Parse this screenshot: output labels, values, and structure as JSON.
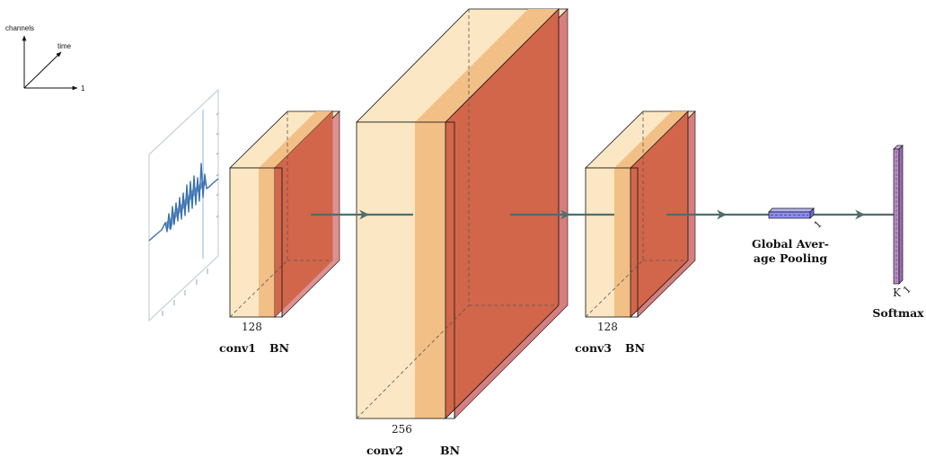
{
  "axes_legend": {
    "y_label": "channels",
    "z_label": "time",
    "x_label": "1"
  },
  "blocks": [
    {
      "id": "conv1",
      "size_label": "128",
      "conv_label": "conv1",
      "bn_label": "BN"
    },
    {
      "id": "conv2",
      "size_label": "256",
      "conv_label": "conv2",
      "bn_label": "BN"
    },
    {
      "id": "conv3",
      "size_label": "128",
      "conv_label": "conv3",
      "bn_label": "BN"
    }
  ],
  "gap": {
    "title_line1": "Global Aver-",
    "title_line2": "age Pooling",
    "dim_label": "1"
  },
  "softmax": {
    "title": "Softmax",
    "dim_k": "K",
    "dim_1": "1"
  },
  "colors": {
    "block_front": "#fbe7c4",
    "block_top": "#fbe7c4",
    "bn_front": "#f2bf86",
    "relu_side": "#d2664a",
    "relu_rim": "#d77e7e",
    "arrow": "#4e6e6e",
    "gap_fill": "#8c8cf2",
    "softmax_fill": "#b88cc8"
  }
}
